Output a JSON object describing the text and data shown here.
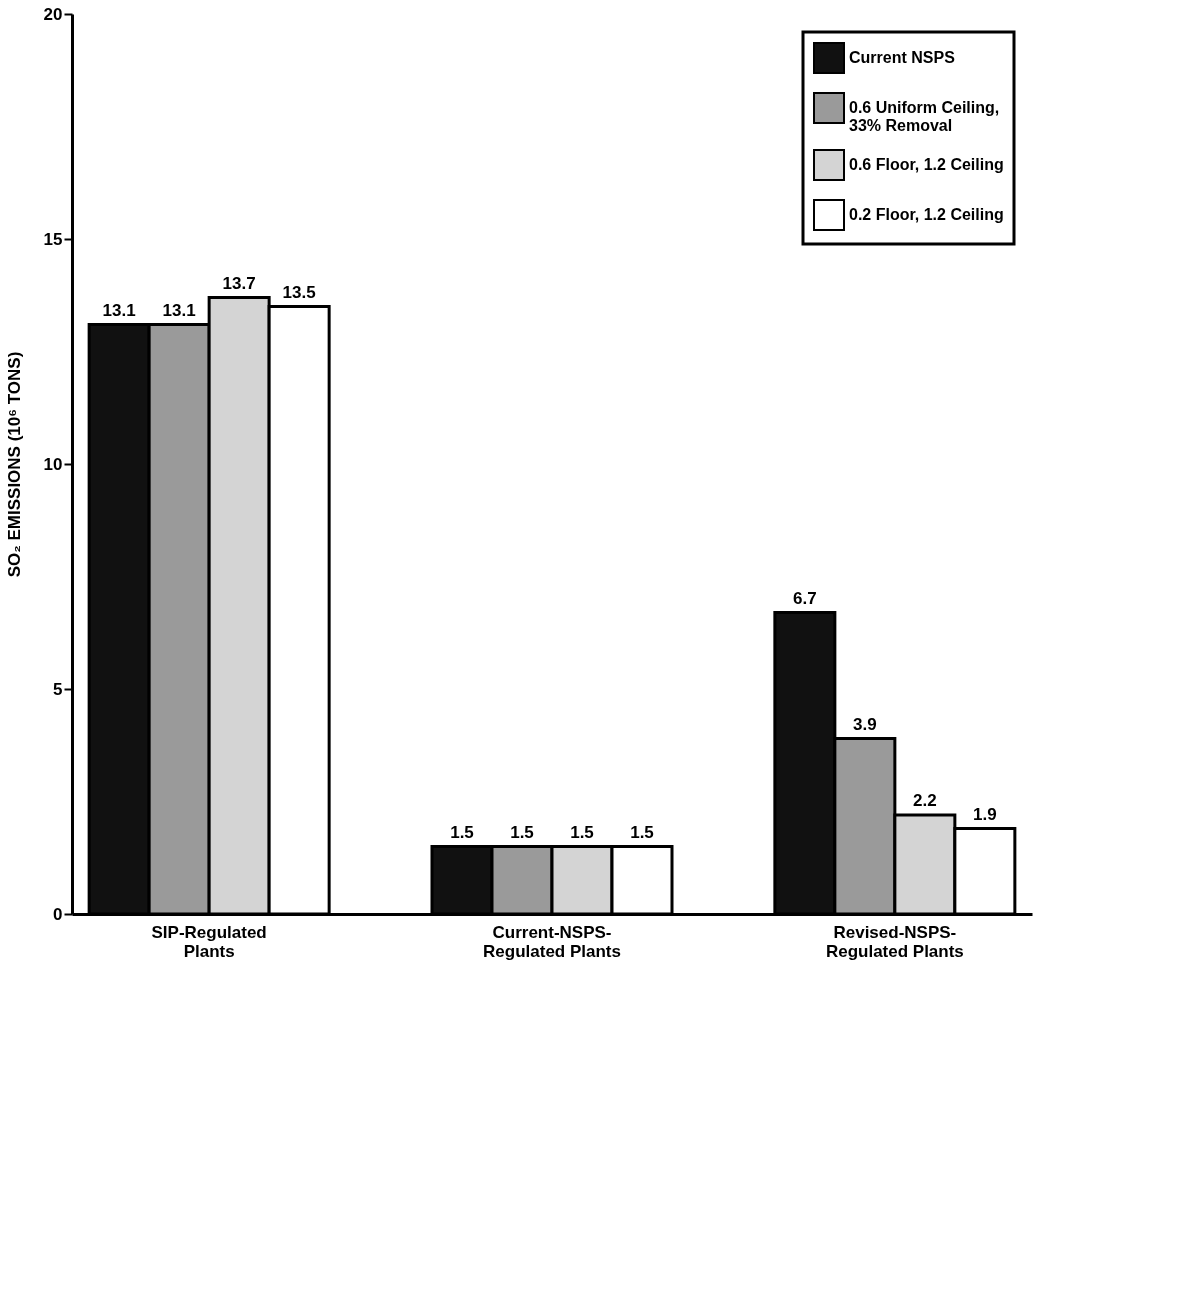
{
  "chart_data": {
    "type": "bar",
    "ylabel": "SO₂ EMISSIONS (10⁶ TONS)",
    "categories": [
      "SIP-Regulated\nPlants",
      "Current-NSPS-\nRegulated Plants",
      "Revised-NSPS-\nRegulated Plants"
    ],
    "series": [
      {
        "name": "Current NSPS",
        "color": "#111111",
        "values": [
          13.1,
          1.5,
          6.7
        ]
      },
      {
        "name": "0.6 Uniform Ceiling,\n33% Removal",
        "color": "#9a9a9a",
        "values": [
          13.1,
          1.5,
          3.9
        ]
      },
      {
        "name": "0.6 Floor, 1.2 Ceiling",
        "color": "#d4d4d4",
        "values": [
          13.7,
          1.5,
          2.2
        ]
      },
      {
        "name": "0.2 Floor, 1.2 Ceiling",
        "color": "#ffffff",
        "values": [
          13.5,
          1.5,
          1.9
        ]
      }
    ],
    "ylim": [
      0,
      20
    ],
    "yticks": [
      0,
      5,
      10,
      15,
      20
    ],
    "grid": false,
    "legend": "top right",
    "data_labels": true
  }
}
